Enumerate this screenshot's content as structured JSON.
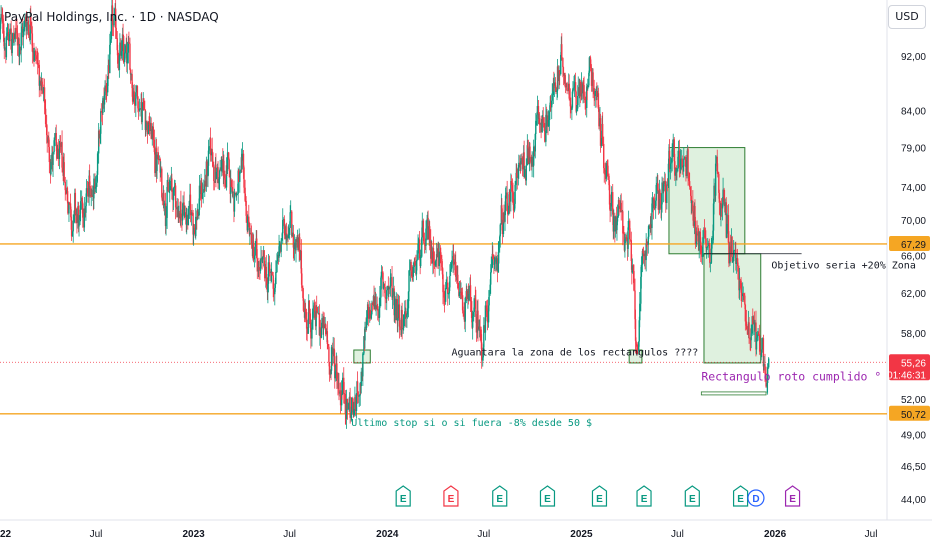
{
  "header": {
    "title": "PayPal Holdings, Inc. · 1D · NASDAQ",
    "currency": "USD"
  },
  "chart_data": {
    "type": "candlestick",
    "y_scale": "log",
    "ylim": [
      42.5,
      101
    ],
    "y_ticks": [
      "92,00",
      "84,00",
      "79,00",
      "74,00",
      "70,00",
      "66,00",
      "62,00",
      "58,00",
      "55,00",
      "52,00",
      "49,00",
      "46,50",
      "44,00"
    ],
    "y_tick_values": [
      92,
      84,
      79,
      74,
      70,
      66,
      62,
      58,
      55,
      52,
      49,
      46.5,
      44
    ],
    "xlim": [
      "2022-01-01",
      "2026-07-31"
    ],
    "x_ticks": [
      {
        "label": "2022",
        "date": "2022-01-01"
      },
      {
        "label": "Jul",
        "date": "2022-07-01"
      },
      {
        "label": "2023",
        "date": "2023-01-01"
      },
      {
        "label": "Jul",
        "date": "2023-07-01"
      },
      {
        "label": "2024",
        "date": "2024-01-01"
      },
      {
        "label": "Jul",
        "date": "2024-07-01"
      },
      {
        "label": "2025",
        "date": "2025-01-01"
      },
      {
        "label": "Jul",
        "date": "2025-07-01"
      },
      {
        "label": "2026",
        "date": "2026-01-01"
      },
      {
        "label": "Jul",
        "date": "2026-07-01"
      }
    ],
    "series_path": [
      [
        "2022-01-01",
        96
      ],
      [
        "2022-02-01",
        94
      ],
      [
        "2022-03-01",
        99
      ],
      [
        "2022-04-01",
        80
      ],
      [
        "2022-05-01",
        75
      ],
      [
        "2022-06-01",
        69
      ],
      [
        "2022-07-01",
        76
      ],
      [
        "2022-08-01",
        95
      ],
      [
        "2022-09-01",
        90
      ],
      [
        "2022-10-01",
        85
      ],
      [
        "2022-11-01",
        75
      ],
      [
        "2022-12-01",
        72
      ],
      [
        "2023-01-01",
        70
      ],
      [
        "2023-02-01",
        77
      ],
      [
        "2023-03-01",
        75
      ],
      [
        "2023-04-01",
        74
      ],
      [
        "2023-05-01",
        64
      ],
      [
        "2023-06-01",
        63
      ],
      [
        "2023-07-01",
        72
      ],
      [
        "2023-08-01",
        60
      ],
      [
        "2023-09-01",
        58
      ],
      [
        "2023-10-01",
        54
      ],
      [
        "2023-10-31",
        50.8
      ],
      [
        "2023-12-01",
        60
      ],
      [
        "2024-01-01",
        63
      ],
      [
        "2024-02-01",
        60
      ],
      [
        "2024-03-01",
        66
      ],
      [
        "2024-04-01",
        67
      ],
      [
        "2024-05-01",
        63
      ],
      [
        "2024-06-01",
        60
      ],
      [
        "2024-07-01",
        58
      ],
      [
        "2024-08-01",
        68
      ],
      [
        "2024-09-01",
        75
      ],
      [
        "2024-10-01",
        80
      ],
      [
        "2024-11-01",
        85
      ],
      [
        "2024-12-01",
        90
      ],
      [
        "2025-01-01",
        86
      ],
      [
        "2025-01-20",
        92
      ],
      [
        "2025-02-10",
        80
      ],
      [
        "2025-03-01",
        72
      ],
      [
        "2025-04-01",
        68
      ],
      [
        "2025-04-15",
        57
      ],
      [
        "2025-05-10",
        71
      ],
      [
        "2025-06-01",
        73
      ],
      [
        "2025-07-01",
        77
      ],
      [
        "2025-07-20",
        79
      ],
      [
        "2025-08-05",
        68
      ],
      [
        "2025-09-01",
        68
      ],
      [
        "2025-09-15",
        78
      ],
      [
        "2025-10-01",
        69
      ],
      [
        "2025-10-15",
        66
      ],
      [
        "2025-11-01",
        61
      ],
      [
        "2025-11-20",
        59
      ],
      [
        "2025-12-10",
        56
      ],
      [
        "2025-12-20",
        55.26
      ]
    ],
    "horizontal_lines": [
      {
        "price": 67.29,
        "label": "67,29",
        "color": "#f5a623"
      },
      {
        "price": 50.72,
        "label": "50,72",
        "color": "#f5a623"
      }
    ],
    "last_price": {
      "label": "55,26",
      "countdown": "01:46:31",
      "color": "#f23645"
    },
    "annotations": [
      {
        "text": "Aguantara la zona de los rectangulos ????",
        "date": "2024-05-01",
        "price": 55.9,
        "color": "#131722"
      },
      {
        "text": "Objetivo seria +20% Zona",
        "date": "2025-12-25",
        "price": 64.6,
        "color": "#131722"
      },
      {
        "text": "Rectangulo roto cumplido °",
        "date": "2025-08-15",
        "price": 53.6,
        "color": "#9c27b0"
      },
      {
        "text": "Ultimo stop si o si fuera -8% desde 50 $",
        "date": "2023-10-25",
        "price": 49.7,
        "color": "#089981"
      }
    ],
    "rectangles": [
      {
        "x0": "2025-06-15",
        "x1": "2025-11-05",
        "y0": 66.2,
        "y1": 79
      },
      {
        "x0": "2025-08-20",
        "x1": "2025-12-05",
        "y0": 55.2,
        "y1": 66.2
      },
      {
        "x0": "2023-10-30",
        "x1": "2023-11-30",
        "y0": 55.2,
        "y1": 56.4
      },
      {
        "x0": "2025-04-01",
        "x1": "2025-04-25",
        "y0": 55.2,
        "y1": 56.4
      }
    ],
    "event_markers": [
      {
        "label": "E",
        "date": "2024-01-31",
        "color": "#089981"
      },
      {
        "label": "E",
        "date": "2024-04-30",
        "color": "#f23645"
      },
      {
        "label": "E",
        "date": "2024-07-31",
        "color": "#089981"
      },
      {
        "label": "E",
        "date": "2024-10-29",
        "color": "#089981"
      },
      {
        "label": "E",
        "date": "2025-02-04",
        "color": "#089981"
      },
      {
        "label": "E",
        "date": "2025-04-29",
        "color": "#089981"
      },
      {
        "label": "E",
        "date": "2025-07-29",
        "color": "#089981"
      },
      {
        "label": "E",
        "date": "2025-10-28",
        "color": "#089981"
      },
      {
        "label": "D",
        "date": "2025-11-26",
        "color": "#2962ff"
      },
      {
        "label": "E",
        "date": "2026-02-03",
        "color": "#9c27b0"
      }
    ]
  }
}
